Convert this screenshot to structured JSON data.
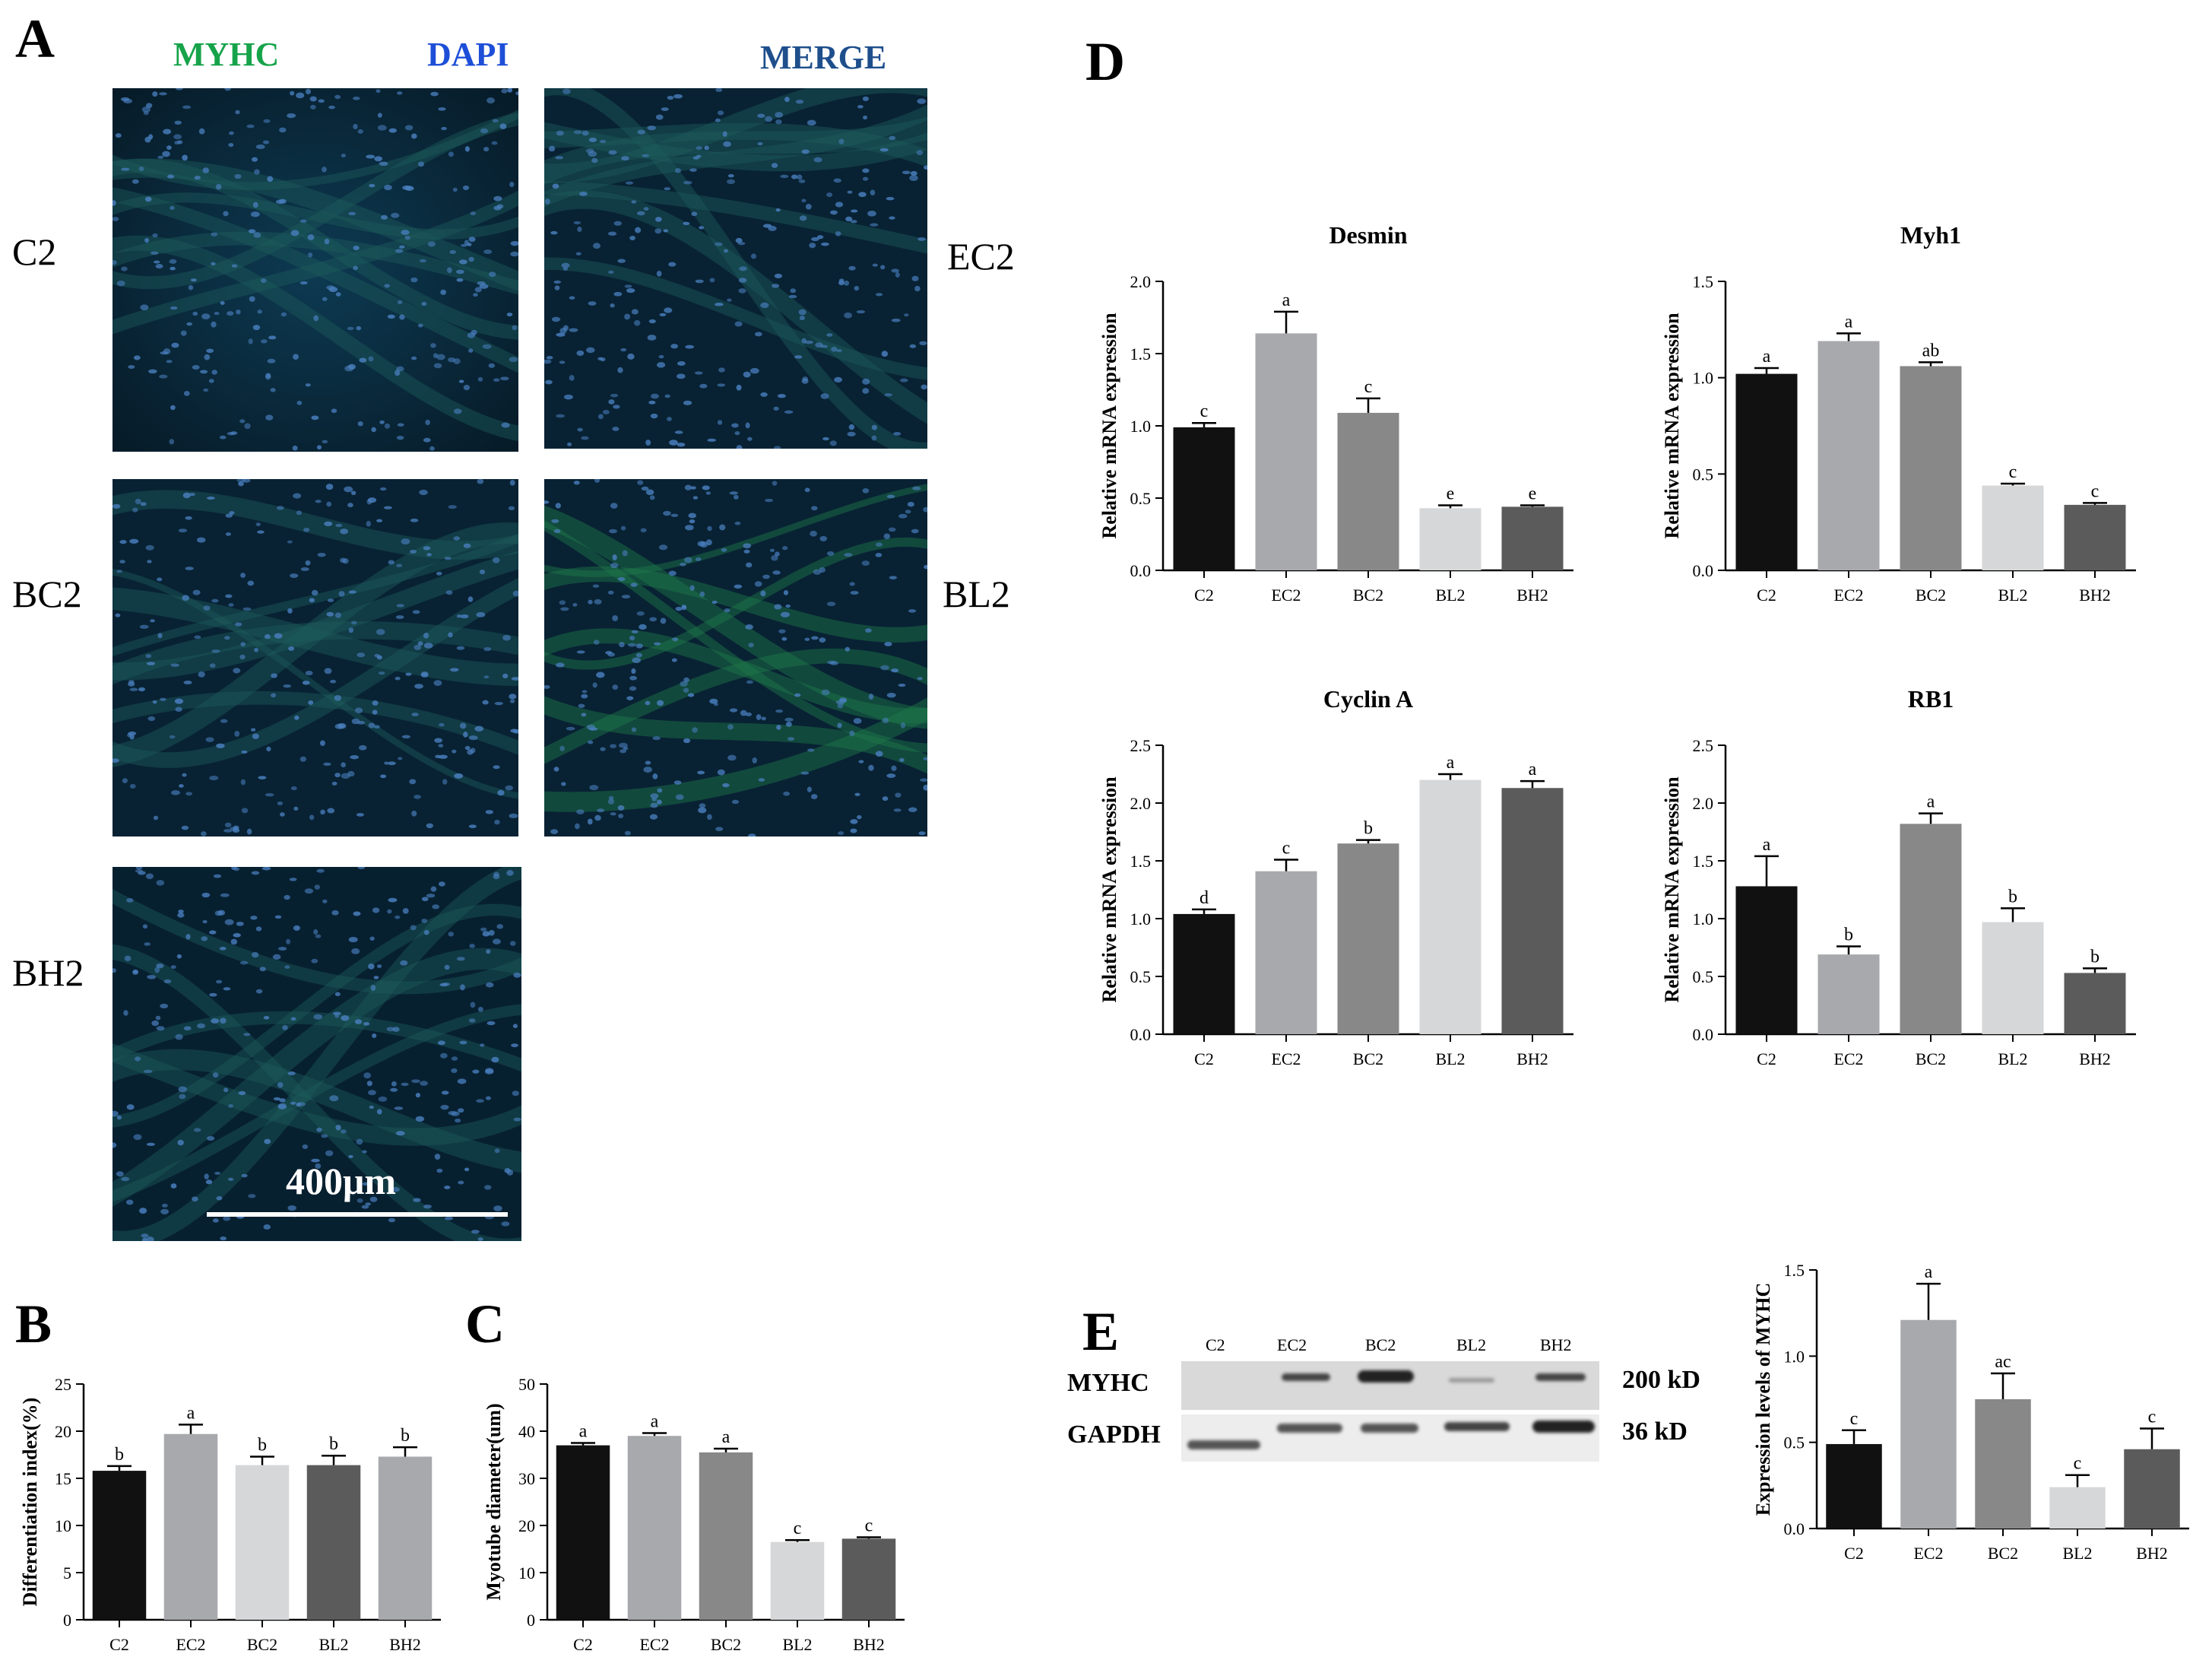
{
  "panels": {
    "A": "A",
    "B": "B",
    "C": "C",
    "D": "D",
    "E": "E"
  },
  "microscopy": {
    "channels": [
      {
        "label": "MYHC",
        "color": "#16a34a"
      },
      {
        "label": "DAPI",
        "color": "#1d4ed8"
      },
      {
        "label": "MERGE",
        "color": "#1e4f8c"
      }
    ],
    "rows": [
      "C2",
      "EC2",
      "BC2",
      "BL2",
      "BH2"
    ],
    "scale_bar": "400μm"
  },
  "chart_data": [
    {
      "id": "B",
      "type": "bar",
      "title": "",
      "categories": [
        "C2",
        "EC2",
        "BC2",
        "BL2",
        "BH2"
      ],
      "values": [
        15.8,
        19.7,
        16.4,
        16.4,
        17.3
      ],
      "errors": [
        0.5,
        1.0,
        0.9,
        1.0,
        1.0
      ],
      "letters": [
        "b",
        "a",
        "b",
        "b",
        "b"
      ],
      "colors": [
        "#111111",
        "#a8a9ad",
        "#d6d7d9",
        "#5b5b5b",
        "#a8a9ad"
      ],
      "ylabel": "Differentiation index(%)",
      "ylim": [
        0,
        25
      ],
      "yticks": [
        0,
        5,
        10,
        15,
        20,
        25
      ]
    },
    {
      "id": "C",
      "type": "bar",
      "title": "",
      "categories": [
        "C2",
        "EC2",
        "BC2",
        "BL2",
        "BH2"
      ],
      "values": [
        37,
        39,
        35.5,
        16.5,
        17.2
      ],
      "errors": [
        0.5,
        0.6,
        0.8,
        0.4,
        0.3
      ],
      "letters": [
        "a",
        "a",
        "a",
        "c",
        "c"
      ],
      "colors": [
        "#111111",
        "#a8a9ad",
        "#888888",
        "#d6d7d9",
        "#5b5b5b"
      ],
      "ylabel": "Myotube diameter(um)",
      "ylim": [
        0,
        50
      ],
      "yticks": [
        0,
        10,
        20,
        30,
        40,
        50
      ]
    },
    {
      "id": "D-desmin",
      "type": "bar",
      "title": "Desmin",
      "categories": [
        "C2",
        "EC2",
        "BC2",
        "BL2",
        "BH2"
      ],
      "values": [
        0.99,
        1.64,
        1.09,
        0.43,
        0.44
      ],
      "errors": [
        0.03,
        0.15,
        0.1,
        0.02,
        0.01
      ],
      "letters": [
        "c",
        "a",
        "c",
        "e",
        "e"
      ],
      "colors": [
        "#111111",
        "#a8a9ad",
        "#888888",
        "#d6d7d9",
        "#5b5b5b"
      ],
      "ylabel": "Relative mRNA expression",
      "ylim": [
        0,
        2.0
      ],
      "yticks": [
        "0.0",
        "0.5",
        "1.0",
        "1.5",
        "2.0"
      ]
    },
    {
      "id": "D-myh1",
      "type": "bar",
      "title": "Myh1",
      "categories": [
        "C2",
        "EC2",
        "BC2",
        "BL2",
        "BH2"
      ],
      "values": [
        1.02,
        1.19,
        1.06,
        0.44,
        0.34
      ],
      "errors": [
        0.03,
        0.04,
        0.02,
        0.01,
        0.01
      ],
      "letters": [
        "a",
        "a",
        "ab",
        "c",
        "c"
      ],
      "colors": [
        "#111111",
        "#a8a9ad",
        "#888888",
        "#d6d7d9",
        "#5b5b5b"
      ],
      "ylabel": "Relative mRNA expression",
      "ylim": [
        0,
        1.5
      ],
      "yticks": [
        "0.0",
        "0.5",
        "1.0",
        "1.5"
      ]
    },
    {
      "id": "D-cyclinA",
      "type": "bar",
      "title": "Cyclin A",
      "categories": [
        "C2",
        "EC2",
        "BC2",
        "BL2",
        "BH2"
      ],
      "values": [
        1.04,
        1.41,
        1.65,
        2.2,
        2.13
      ],
      "errors": [
        0.04,
        0.1,
        0.03,
        0.05,
        0.06
      ],
      "letters": [
        "d",
        "c",
        "b",
        "a",
        "a"
      ],
      "colors": [
        "#111111",
        "#a8a9ad",
        "#888888",
        "#d6d7d9",
        "#5b5b5b"
      ],
      "ylabel": "Relative mRNA expression",
      "ylim": [
        0,
        2.5
      ],
      "yticks": [
        "0.0",
        "0.5",
        "1.0",
        "1.5",
        "2.0",
        "2.5"
      ]
    },
    {
      "id": "D-rb1",
      "type": "bar",
      "title": "RB1",
      "categories": [
        "C2",
        "EC2",
        "BC2",
        "BL2",
        "BH2"
      ],
      "values": [
        1.28,
        0.69,
        1.82,
        0.97,
        0.53
      ],
      "errors": [
        0.26,
        0.07,
        0.09,
        0.12,
        0.04
      ],
      "letters": [
        "a",
        "b",
        "a",
        "b",
        "b"
      ],
      "colors": [
        "#111111",
        "#a8a9ad",
        "#888888",
        "#d6d7d9",
        "#5b5b5b"
      ],
      "ylabel": "Relative mRNA expression",
      "ylim": [
        0,
        2.5
      ],
      "yticks": [
        "0.0",
        "0.5",
        "1.0",
        "1.5",
        "2.0",
        "2.5"
      ]
    },
    {
      "id": "E",
      "type": "bar",
      "title": "",
      "categories": [
        "C2",
        "EC2",
        "BC2",
        "BL2",
        "BH2"
      ],
      "values": [
        0.49,
        1.21,
        0.75,
        0.24,
        0.46
      ],
      "errors": [
        0.08,
        0.21,
        0.15,
        0.07,
        0.12
      ],
      "letters": [
        "c",
        "a",
        "ac",
        "c",
        "c"
      ],
      "colors": [
        "#111111",
        "#a8a9ad",
        "#888888",
        "#d6d7d9",
        "#5b5b5b"
      ],
      "ylabel": "Expression levels of MYHC",
      "ylim": [
        0,
        1.5
      ],
      "yticks": [
        "0.0",
        "0.5",
        "1.0",
        "1.5"
      ]
    }
  ],
  "blot": {
    "lanes": [
      "C2",
      "EC2",
      "BC2",
      "BL2",
      "BH2"
    ],
    "rows": [
      {
        "label": "MYHC",
        "size": "200 kD"
      },
      {
        "label": "GAPDH",
        "size": "36 kD"
      }
    ]
  }
}
